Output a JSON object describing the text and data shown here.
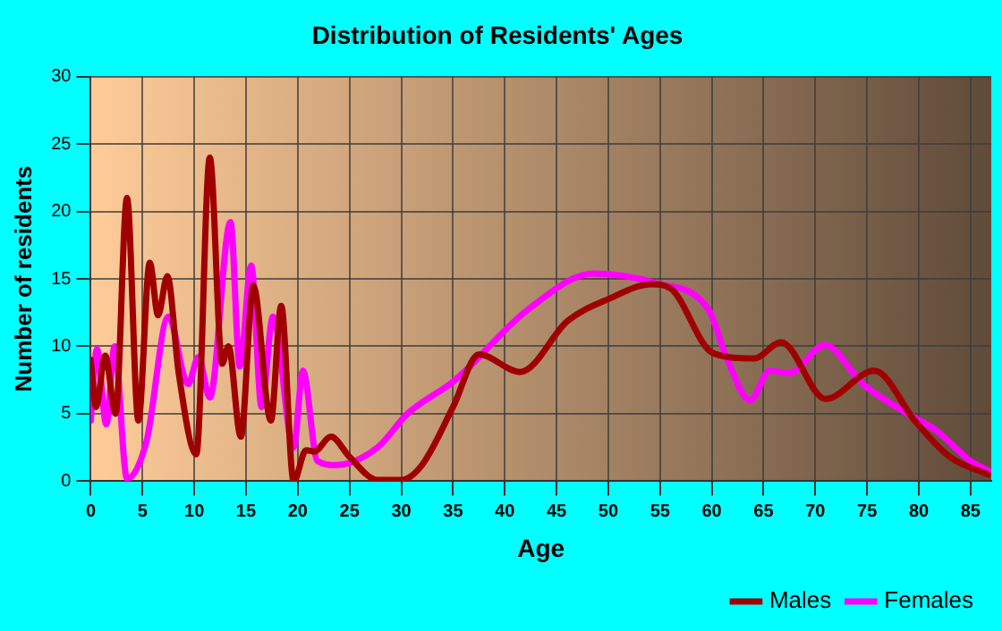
{
  "chart_data": {
    "type": "line",
    "title": "Distribution of Residents' Ages",
    "xlabel": "Age",
    "ylabel": "Number of residents",
    "xlim": [
      0,
      87
    ],
    "xticks": [
      0,
      5,
      10,
      15,
      20,
      25,
      30,
      35,
      40,
      45,
      50,
      55,
      60,
      65,
      70,
      75,
      80,
      85
    ],
    "ylim": [
      0,
      30
    ],
    "yticks": [
      0,
      5,
      10,
      15,
      20,
      25,
      30
    ],
    "grid": true,
    "legend": "bottom right",
    "marker": "none",
    "line_style": "solid",
    "series": [
      {
        "name": "Males",
        "color": "#a00000",
        "x": [
          0,
          0.5,
          1.4,
          2.4,
          3.5,
          4.6,
          5.7,
          6.5,
          7.4,
          8.5,
          10.2,
          11.5,
          12.7,
          13.3,
          14.5,
          15.7,
          17.4,
          18.4,
          19.6,
          20.8,
          21.6,
          23.2,
          25,
          27.7,
          30,
          32,
          35,
          37.5,
          41.5,
          46.1,
          50,
          54.2,
          56,
          60.1,
          64.1,
          66.7,
          71,
          75.7,
          79.7,
          83,
          86.7
        ],
        "values": [
          9,
          5.5,
          9.3,
          5,
          21,
          4.5,
          16.2,
          12.3,
          15.2,
          8,
          2,
          24,
          8.7,
          10,
          3.3,
          14.5,
          4.5,
          13,
          0,
          2.3,
          2.2,
          3.3,
          1.8,
          0.1,
          0.1,
          1.2,
          5.5,
          9.4,
          8.1,
          11.9,
          13.5,
          14.6,
          14.3,
          9.5,
          9.1,
          10.3,
          6.1,
          8.2,
          4.4,
          1.8,
          0.5
        ]
      },
      {
        "name": "Females",
        "color": "#ff00ff",
        "x": [
          0,
          0.6,
          1.5,
          2.3,
          3.5,
          5.4,
          7.5,
          9.4,
          10.4,
          11.5,
          13.5,
          14.4,
          15.5,
          16.5,
          17.6,
          19.6,
          20.5,
          21.9,
          23.7,
          27.7,
          30.6,
          35.2,
          42.2,
          48.6,
          54.5,
          59.7,
          61.5,
          63.7,
          65.6,
          67.5,
          70.9,
          74.6,
          78.7,
          81.6,
          85,
          86.7
        ],
        "values": [
          4.5,
          9.8,
          4.2,
          10,
          0.2,
          3,
          12.2,
          7.2,
          9.2,
          6.2,
          19.2,
          8.5,
          16,
          5.5,
          12.2,
          2.5,
          8.2,
          1.5,
          1.2,
          2.5,
          5,
          7.5,
          12.7,
          15.4,
          14.7,
          12.7,
          9,
          6,
          8.2,
          8,
          10.1,
          7.2,
          5.1,
          3.8,
          1.5,
          0.8
        ]
      }
    ]
  }
}
